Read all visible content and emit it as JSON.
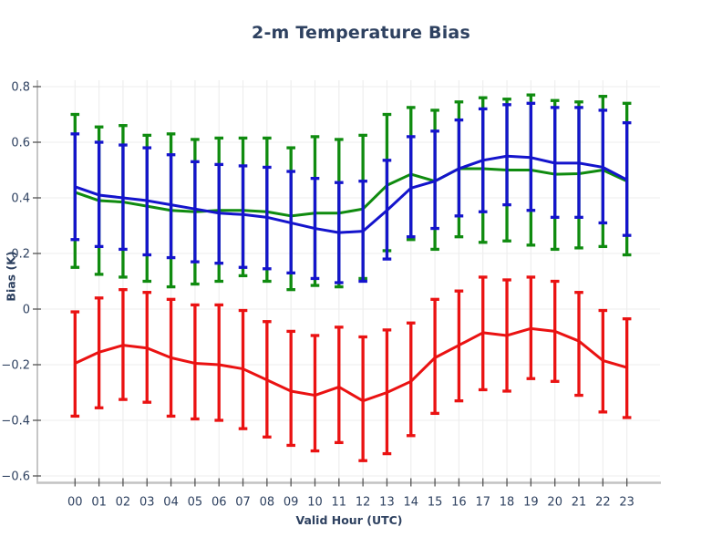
{
  "figure": {
    "title": "2-m Temperature Bias",
    "xlabel": "Valid Hour (UTC)",
    "ylabel": "Bias (K)"
  },
  "colors": {
    "text": "#2e4160",
    "grid": "#ededed",
    "spine_left": "#a8a8a8",
    "spine_bottom": "#c2c2c2",
    "tick": "#555555",
    "background": "#ffffff",
    "green_series": "#0f8b0f",
    "blue_series": "#1414cc",
    "red_series": "#ea1212"
  },
  "chart_data": {
    "type": "line",
    "subtype": "errorbar",
    "title": "2-m Temperature Bias",
    "xlabel": "Valid Hour (UTC)",
    "ylabel": "Bias (K)",
    "grid": true,
    "legend_position": "none",
    "x_categories": [
      "00",
      "01",
      "02",
      "03",
      "04",
      "05",
      "06",
      "07",
      "08",
      "09",
      "10",
      "11",
      "12",
      "13",
      "14",
      "15",
      "16",
      "17",
      "18",
      "19",
      "20",
      "21",
      "22",
      "23"
    ],
    "ylim": [
      -0.655,
      0.825
    ],
    "yticks": [
      0.8,
      0.6,
      0.4,
      0.2,
      0,
      -0.2,
      -0.4,
      -0.6
    ],
    "ytick_labels": [
      "0.8",
      "0.6",
      "0.4",
      "0.2",
      "0",
      "−0.2",
      "−0.4",
      "−0.6"
    ],
    "series": [
      {
        "name": "green-series",
        "color": "#0f8b0f",
        "center": [
          0.42,
          0.39,
          0.385,
          0.37,
          0.355,
          0.35,
          0.355,
          0.355,
          0.35,
          0.335,
          0.345,
          0.345,
          0.36,
          0.445,
          0.485,
          0.46,
          0.505,
          0.505,
          0.5,
          0.5,
          0.485,
          0.487,
          0.5,
          0.46
        ],
        "upper": [
          0.7,
          0.655,
          0.66,
          0.625,
          0.63,
          0.61,
          0.615,
          0.615,
          0.615,
          0.58,
          0.62,
          0.61,
          0.625,
          0.7,
          0.725,
          0.715,
          0.745,
          0.76,
          0.755,
          0.77,
          0.75,
          0.745,
          0.765,
          0.74
        ],
        "lower": [
          0.15,
          0.125,
          0.115,
          0.1,
          0.08,
          0.09,
          0.1,
          0.12,
          0.1,
          0.07,
          0.085,
          0.08,
          0.11,
          0.21,
          0.25,
          0.215,
          0.26,
          0.24,
          0.245,
          0.23,
          0.215,
          0.22,
          0.225,
          0.195
        ]
      },
      {
        "name": "blue-series",
        "color": "#1414cc",
        "center": [
          0.44,
          0.41,
          0.4,
          0.39,
          0.375,
          0.36,
          0.345,
          0.34,
          0.33,
          0.31,
          0.29,
          0.275,
          0.28,
          0.355,
          0.435,
          0.46,
          0.505,
          0.535,
          0.55,
          0.545,
          0.525,
          0.525,
          0.51,
          0.465
        ],
        "upper": [
          0.63,
          0.6,
          0.59,
          0.58,
          0.555,
          0.53,
          0.52,
          0.515,
          0.51,
          0.495,
          0.47,
          0.455,
          0.46,
          0.535,
          0.62,
          0.64,
          0.68,
          0.72,
          0.735,
          0.74,
          0.725,
          0.725,
          0.715,
          0.67
        ],
        "lower": [
          0.25,
          0.225,
          0.215,
          0.195,
          0.185,
          0.17,
          0.165,
          0.15,
          0.145,
          0.13,
          0.11,
          0.095,
          0.1,
          0.18,
          0.26,
          0.29,
          0.335,
          0.35,
          0.375,
          0.355,
          0.33,
          0.33,
          0.31,
          0.265
        ]
      },
      {
        "name": "red-series",
        "color": "#ea1212",
        "center": [
          -0.195,
          -0.155,
          -0.13,
          -0.14,
          -0.175,
          -0.195,
          -0.2,
          -0.215,
          -0.255,
          -0.295,
          -0.31,
          -0.28,
          -0.33,
          -0.3,
          -0.26,
          -0.175,
          -0.13,
          -0.085,
          -0.095,
          -0.07,
          -0.08,
          -0.115,
          -0.185,
          -0.21
        ],
        "upper": [
          -0.01,
          0.04,
          0.07,
          0.06,
          0.035,
          0.015,
          0.015,
          -0.005,
          -0.045,
          -0.08,
          -0.095,
          -0.065,
          -0.1,
          -0.075,
          -0.05,
          0.035,
          0.065,
          0.115,
          0.105,
          0.115,
          0.1,
          0.06,
          -0.005,
          -0.035
        ],
        "lower": [
          -0.385,
          -0.355,
          -0.325,
          -0.335,
          -0.385,
          -0.395,
          -0.4,
          -0.43,
          -0.46,
          -0.49,
          -0.51,
          -0.48,
          -0.545,
          -0.52,
          -0.455,
          -0.375,
          -0.33,
          -0.29,
          -0.295,
          -0.25,
          -0.26,
          -0.31,
          -0.37,
          -0.39
        ]
      }
    ]
  }
}
